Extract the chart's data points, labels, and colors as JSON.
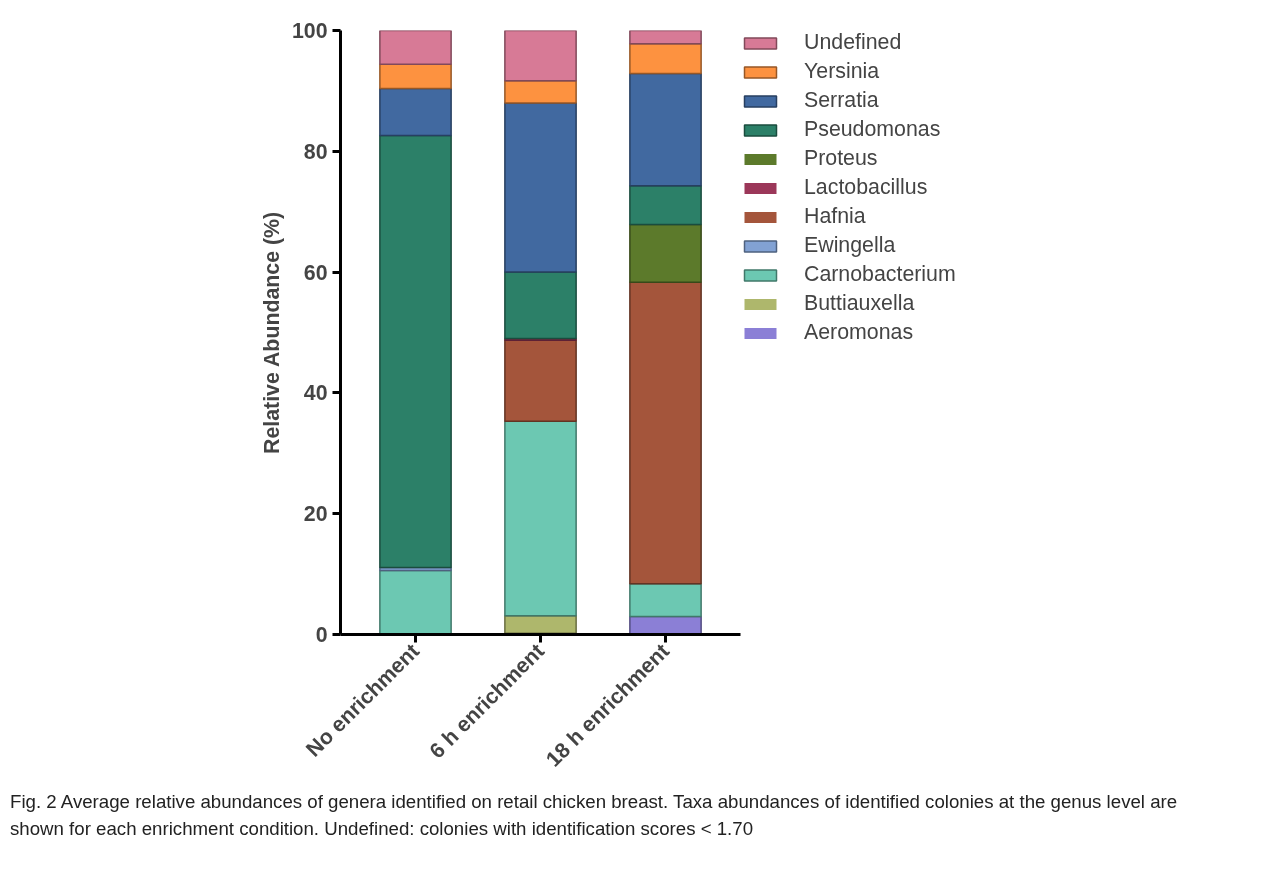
{
  "chart_data": {
    "type": "bar",
    "stacked": true,
    "ylabel": "Relative Abundance (%)",
    "categories": [
      "No enrichment",
      "6 h enrichment",
      "18 h enrichment"
    ],
    "series": [
      {
        "name": "Aeromonas",
        "color": "#8b7fd6",
        "values": [
          0,
          0.2,
          3.0
        ]
      },
      {
        "name": "Buttiauxella",
        "color": "#aeb76c",
        "values": [
          0,
          2.9,
          0
        ]
      },
      {
        "name": "Carnobacterium",
        "color": "#6cc8b2",
        "values": [
          10.6,
          32.2,
          5.4
        ]
      },
      {
        "name": "Ewingella",
        "color": "#82a2d4",
        "values": [
          0.5,
          0,
          0
        ]
      },
      {
        "name": "Hafnia",
        "color": "#a4553b",
        "values": [
          0,
          13.4,
          49.9
        ]
      },
      {
        "name": "Lactobacillus",
        "color": "#9b3759",
        "values": [
          0,
          0.3,
          0
        ]
      },
      {
        "name": "Proteus",
        "color": "#5c7a2b",
        "values": [
          0,
          0,
          9.6
        ]
      },
      {
        "name": "Pseudomonas",
        "color": "#2c8068",
        "values": [
          71.5,
          11.0,
          6.4
        ]
      },
      {
        "name": "Serratia",
        "color": "#4169a0",
        "values": [
          7.8,
          28.0,
          18.6
        ]
      },
      {
        "name": "Yersinia",
        "color": "#fd9240",
        "values": [
          4.0,
          3.7,
          4.9
        ]
      },
      {
        "name": "Undefined",
        "color": "#d77a96",
        "values": [
          5.6,
          8.3,
          2.2
        ]
      }
    ],
    "ylim": [
      0,
      100
    ],
    "yticks": [
      0,
      20,
      40,
      60,
      80,
      100
    ],
    "grid": false,
    "legend": "top right",
    "annotations": [
      "Fig. 2 Average relative abundances of genera identified on retail chicken breast. Taxa abundances of identified colonies at the genus level are shown for each enrichment condition. Undefined: colonies with identification scores < 1.70"
    ]
  }
}
